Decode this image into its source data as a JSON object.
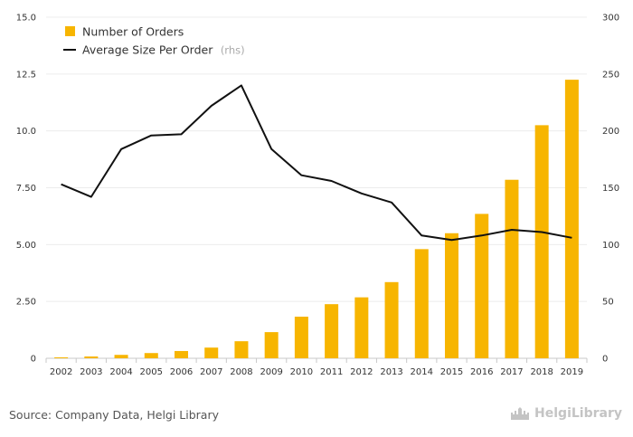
{
  "chart_data": {
    "type": "bar+line",
    "title": "",
    "categories": [
      "2002",
      "2003",
      "2004",
      "2005",
      "2006",
      "2007",
      "2008",
      "2009",
      "2010",
      "2011",
      "2012",
      "2013",
      "2014",
      "2015",
      "2016",
      "2017",
      "2018",
      "2019"
    ],
    "series": [
      {
        "name": "Number of Orders",
        "type": "bar",
        "axis": "left",
        "color": "#F7B500",
        "values": [
          0.04,
          0.08,
          0.15,
          0.23,
          0.32,
          0.47,
          0.75,
          1.15,
          1.83,
          2.38,
          2.68,
          3.35,
          4.8,
          5.5,
          6.35,
          7.85,
          10.25,
          12.25
        ]
      },
      {
        "name": "Average Size Per Order",
        "note": "(rhs)",
        "type": "line",
        "axis": "right",
        "color": "#111111",
        "values": [
          153,
          142,
          184,
          196,
          197,
          222,
          240,
          184,
          161,
          156,
          145,
          137,
          108,
          104,
          108,
          113,
          111,
          106
        ]
      }
    ],
    "y_left": {
      "min": 0,
      "max": 15,
      "ticks": [
        "0",
        "2.50",
        "5.00",
        "7.50",
        "10.0",
        "12.5",
        "15.0"
      ]
    },
    "y_right": {
      "min": 0,
      "max": 300,
      "ticks": [
        "0",
        "50",
        "100",
        "150",
        "200",
        "250",
        "300"
      ]
    },
    "grid": true,
    "legend": "top-left"
  },
  "footer": {
    "source": "Source: Company Data, Helgi Library",
    "logo_text": "HelgiLibrary"
  }
}
